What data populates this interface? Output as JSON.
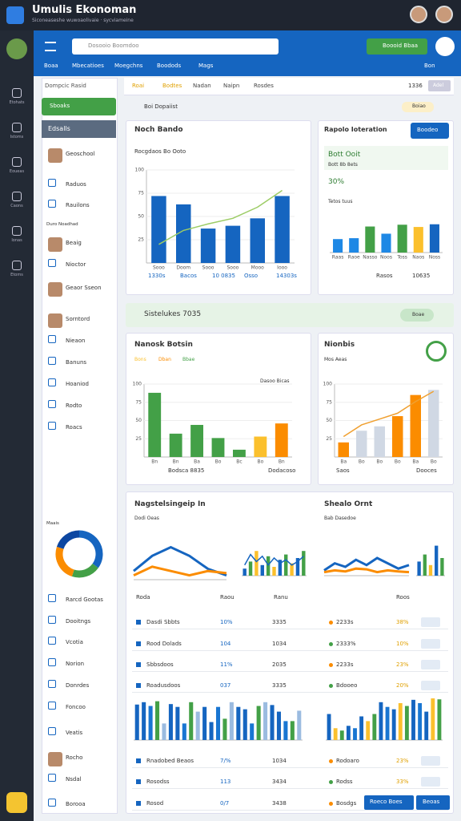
{
  "app": {
    "title": "Umulis Ekonoman",
    "subtitle": "Siconeaseshe wuwoaolivaie · sycviameine",
    "rail": [
      "Etohats",
      "Istoms",
      "Eoueas",
      "Caons",
      "Ionas",
      "Etoms"
    ]
  },
  "header": {
    "search": "Dosooio Boomdoo",
    "button": "Boooid Bbaa",
    "tabs": [
      "Boaa",
      "Mbecatioes",
      "Moegchns",
      "Boodods",
      "Mags"
    ],
    "right": "Bon"
  },
  "sidebar": {
    "heading": "Dompcic Rasid",
    "active": "Sboaks",
    "section": "Edsalls",
    "items": [
      "Geoschool",
      "Raduos",
      "Rauilons",
      "Duro Noadhad",
      "Beaig",
      "Nioctor",
      "Geaor Sseon",
      "Sorntord",
      "Nieaon",
      "Banuns",
      "Hoaniod",
      "Rodto",
      "Roacs",
      "Maais",
      "Rarcd Gootas",
      "Dooitngs",
      "Vcotia",
      "Norion",
      "Donrdes",
      "Foncoo",
      "Veatis",
      "Rocho",
      "Nsdal",
      "Borooa"
    ]
  },
  "subtabs": {
    "tabs": [
      "Roai",
      "Bodtes",
      "Nadan",
      "Naipn",
      "Rosdes"
    ],
    "right": "1336",
    "button": "Adel",
    "filter": "Boi Dopaiist",
    "chip": "Boiao"
  },
  "cards": {
    "c1": {
      "title": "Noch Bando",
      "sub": "Rocgdaos Bo Ooto",
      "footer": [
        "1330s",
        "Bacos",
        "10 0835",
        "Osso",
        "14303s"
      ]
    },
    "c2": {
      "title": "Rapolo Ioteration",
      "button": "Boodeo",
      "kpi": "Bott Ooit",
      "kpi_sub": "Bott 8b 8ets",
      "pct": "30%",
      "note": "Tetos tuus",
      "footer": [
        "Rasos",
        "10635"
      ]
    },
    "banner": {
      "title": "Sistelukes 7035",
      "chip": "Boae"
    },
    "c4": {
      "title": "Nanosk Botsin",
      "legend": [
        "Bons",
        "Dban",
        "Bbae"
      ],
      "note": "Dasoo Bicas",
      "footer": [
        "Bodsca 8835",
        "Dodacoso"
      ]
    },
    "c5": {
      "title": "Nionbis",
      "sub": "Mos Aeas",
      "footer": [
        "Saos",
        "Dooces"
      ]
    },
    "c6": {
      "title": "Nagstelsingeip In",
      "sub": "Dodi Oeas",
      "title2": "Shealo Ornt",
      "sub2": "Bab Dasedoe",
      "head": [
        "Roda",
        "Raou",
        "Ranu",
        "Roos"
      ],
      "rows": [
        [
          "Dasdi Sbbts",
          "10%",
          "3335",
          "2233s",
          "38%"
        ],
        [
          "Rood Dolads",
          "104",
          "1034",
          "2333%",
          "10%"
        ],
        [
          "Sbbsdoos",
          "11%",
          "2035",
          "2233s",
          "23%"
        ],
        [
          "Roadusdoos",
          "037",
          "3335",
          "Bdooeo",
          "20%"
        ],
        [
          "Rnadobed Beaos",
          "7/%",
          "1034",
          "Rodoaro",
          "23%"
        ],
        [
          "Rosodss",
          "113",
          "3434",
          "Rodss",
          "33%"
        ],
        [
          "Rosod",
          "0/7",
          "3438",
          "Bosdgs",
          "20%"
        ]
      ],
      "buttons": [
        "Roeco Boes",
        "Beoas"
      ]
    }
  },
  "charts": {
    "c1": {
      "type": "bar",
      "ylim": [
        0,
        100
      ],
      "yticks": [
        25,
        50,
        75,
        100
      ],
      "categories": [
        "Sooo",
        "Doom",
        "Sooo",
        "Sooo",
        "Mooo",
        "Iooo"
      ],
      "values": [
        72,
        63,
        37,
        40,
        48,
        72
      ],
      "colors": [
        "#1565c0"
      ],
      "line": {
        "values": [
          20,
          35,
          42,
          48,
          60,
          78
        ],
        "color": "#9ccc65"
      }
    },
    "c2": {
      "type": "bar",
      "ylim": [
        0,
        100
      ],
      "categories": [
        "Raas",
        "Raoe",
        "Nasso",
        "Noos",
        "Toss",
        "Naos",
        "Noss"
      ],
      "values": [
        30,
        32,
        58,
        42,
        62,
        57,
        63
      ],
      "colors": [
        "#1e88e5",
        "#1e88e5",
        "#43a047",
        "#1e88e5",
        "#43a047",
        "#fbc02d",
        "#1565c0"
      ]
    },
    "c4": {
      "type": "bar",
      "ylim": [
        0,
        100
      ],
      "yticks": [
        25,
        50,
        75,
        100
      ],
      "categories": [
        "Bn",
        "Bn",
        "Ba",
        "Bo",
        "Bc",
        "Bo",
        "Bn"
      ],
      "values": [
        88,
        32,
        44,
        26,
        10,
        28,
        46
      ],
      "colors": [
        "#43a047",
        "#43a047",
        "#43a047",
        "#43a047",
        "#43a047",
        "#fbc02d",
        "#fb8c00"
      ]
    },
    "c5": {
      "type": "bar",
      "ylim": [
        0,
        100
      ],
      "yticks": [
        25,
        50,
        75,
        100
      ],
      "categories": [
        "Ba",
        "Bo",
        "Bo",
        "Bo",
        "Ba",
        "Bo"
      ],
      "values": [
        20,
        36,
        42,
        56,
        85,
        92
      ],
      "colors": [
        "#fb8c00",
        "#d0d8e4",
        "#d0d8e4",
        "#fb8c00",
        "#fb8c00",
        "#d0d8e4"
      ],
      "line": {
        "values": [
          28,
          44,
          52,
          60,
          76,
          90
        ],
        "color": "#f0a030"
      }
    },
    "m1": {
      "type": "line",
      "ylim": [
        0,
        100
      ],
      "series": [
        {
          "color": "#1565c0",
          "values": [
            20,
            55,
            75,
            55,
            25,
            10
          ]
        },
        {
          "color": "#fb8c00",
          "values": [
            10,
            30,
            20,
            10,
            20,
            15
          ]
        }
      ]
    },
    "m2": {
      "type": "bar",
      "ylim": [
        0,
        100
      ],
      "values": [
        20,
        40,
        70,
        30,
        55,
        25,
        45,
        60,
        35,
        50,
        70
      ],
      "colors": [
        "#1565c0",
        "#43a047",
        "#fbc02d"
      ],
      "line": {
        "values": [
          30,
          60,
          40,
          55,
          30,
          50,
          35,
          45,
          30,
          40,
          55
        ],
        "color": "#1565c0"
      }
    },
    "m3": {
      "type": "line",
      "ylim": [
        0,
        100
      ],
      "series": [
        {
          "color": "#1565c0",
          "values": [
            15,
            35,
            25,
            45,
            30,
            50,
            35,
            20,
            30
          ]
        },
        {
          "color": "#fb8c00",
          "values": [
            10,
            15,
            12,
            20,
            18,
            10,
            15,
            12,
            10
          ]
        }
      ]
    },
    "m4": {
      "type": "bar",
      "ylim": [
        0,
        100
      ],
      "values": [
        40,
        60,
        30,
        85,
        50
      ],
      "colors": [
        "#1565c0",
        "#43a047",
        "#fbc02d"
      ]
    },
    "b1": {
      "type": "bar",
      "ylim": [
        0,
        100
      ],
      "values": [
        75,
        80,
        72,
        82,
        35,
        76,
        70,
        35,
        80,
        60,
        70,
        38,
        70,
        45,
        80,
        70,
        65,
        35,
        72,
        80,
        74,
        60,
        40,
        40,
        62
      ],
      "colors": [
        "#1565c0",
        "#1565c0",
        "#1976d2",
        "#43a047",
        "#9bbbe0"
      ]
    },
    "b2": {
      "type": "bar",
      "ylim": [
        0,
        100
      ],
      "values": [
        55,
        25,
        20,
        30,
        25,
        50,
        40,
        55,
        80,
        70,
        65,
        78,
        72,
        85,
        78,
        60,
        88,
        86
      ],
      "colors": [
        "#1565c0",
        "#fbc02d",
        "#43a047",
        "#1565c0",
        "#1976d2"
      ]
    },
    "donut": {
      "type": "donut",
      "values": [
        35,
        20,
        25,
        20
      ],
      "colors": [
        "#1565c0",
        "#43a047",
        "#fb8c00",
        "#0d47a1"
      ]
    }
  }
}
